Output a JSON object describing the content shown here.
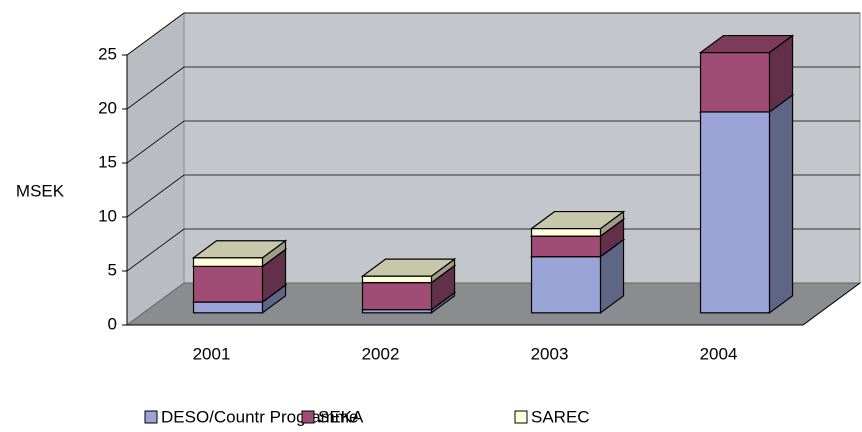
{
  "chart_data": {
    "type": "bar",
    "stacked": true,
    "three_d": true,
    "y_label": "MSEK",
    "categories": [
      "2001",
      "2002",
      "2003",
      "2004"
    ],
    "series": [
      {
        "name": "DESO/Countr Programme",
        "color": "#9aa4d6",
        "values": [
          1.0,
          0.3,
          5.2,
          18.6
        ]
      },
      {
        "name": "SEKA",
        "color": "#a04d76",
        "values": [
          3.3,
          2.5,
          1.9,
          5.5
        ]
      },
      {
        "name": "SAREC",
        "color": "#ffffdc",
        "values": [
          0.8,
          0.6,
          0.7,
          0
        ]
      }
    ],
    "ylim": [
      0,
      25
    ],
    "yticks": [
      0,
      5,
      10,
      15,
      20,
      25
    ],
    "grid": true,
    "legend": "bottom"
  }
}
